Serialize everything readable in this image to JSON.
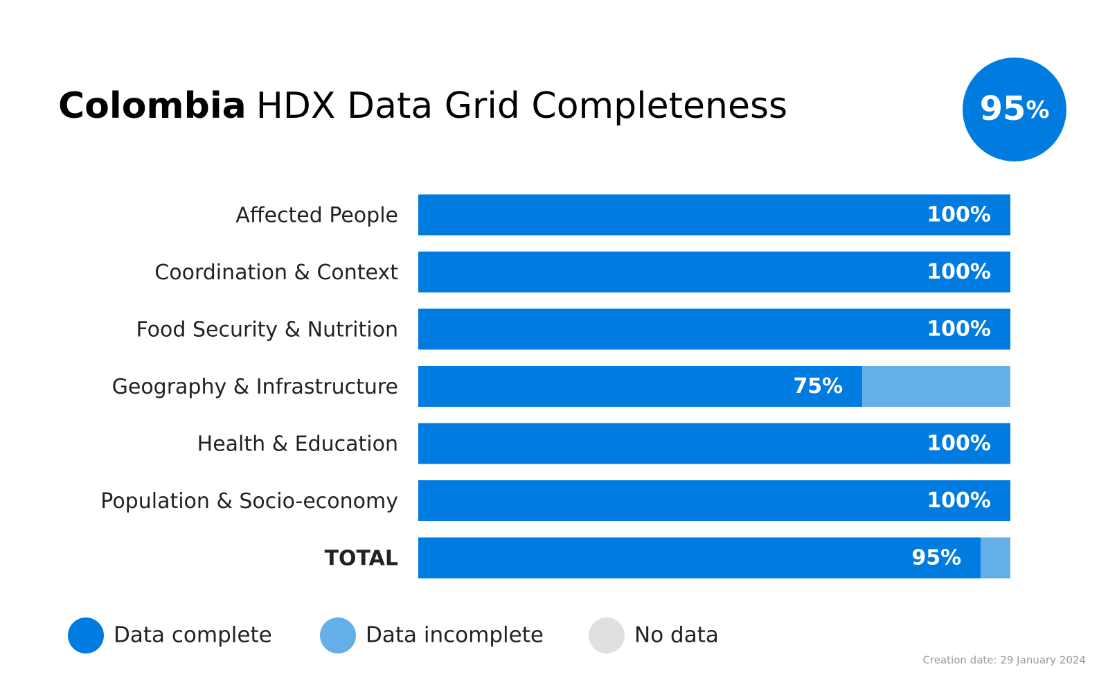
{
  "chart_data": {
    "type": "hbar-stacked",
    "title_country": "Colombia",
    "title": "HDX Data Grid Completeness",
    "headline": "95%",
    "categories": [
      "Affected People",
      "Coordination & Context",
      "Food Security & Nutrition",
      "Geography & Infrastructure",
      "Health & Education",
      "Population & Socio-economy",
      "TOTAL"
    ],
    "series": [
      {
        "name": "Data complete",
        "color": "#007ce0",
        "values": [
          100,
          100,
          100,
          75,
          100,
          100,
          95
        ],
        "value_labels": [
          "100%",
          "100%",
          "100%",
          "75%",
          "100%",
          "100%",
          "95%"
        ]
      },
      {
        "name": "Data incomplete",
        "color": "#65afe8",
        "values": [
          0,
          0,
          0,
          25,
          0,
          0,
          5
        ]
      },
      {
        "name": "No data",
        "color": "#e0e0e0",
        "values": [
          0,
          0,
          0,
          0,
          0,
          0,
          0
        ]
      }
    ],
    "xlim": [
      0,
      100
    ],
    "footnote": "Creation date: 29 January 2024"
  }
}
